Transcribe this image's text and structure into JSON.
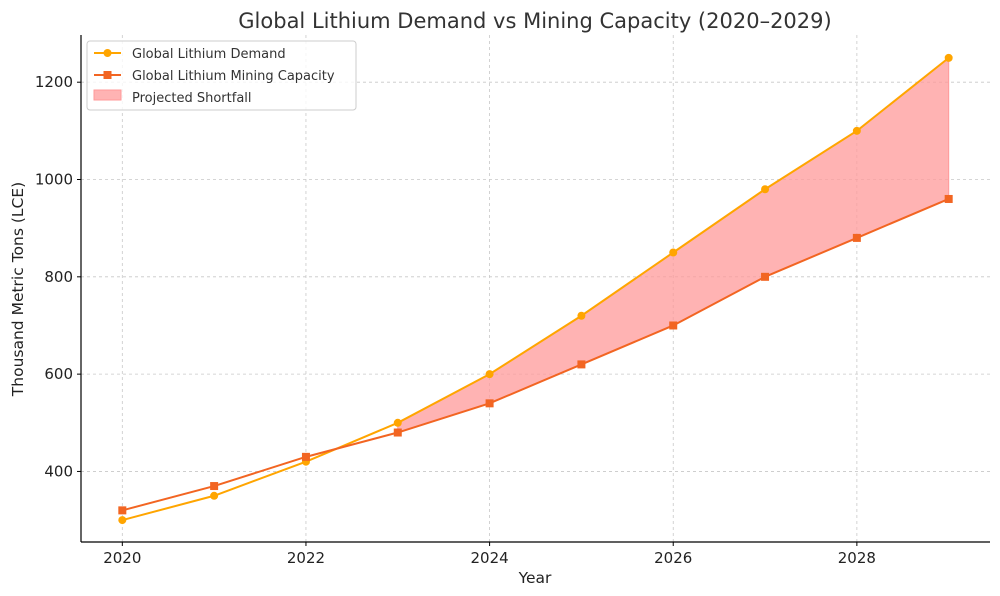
{
  "chart_data": {
    "type": "line",
    "title": "Global Lithium Demand vs Mining Capacity (2020–2029)",
    "xlabel": "Year",
    "ylabel": "Thousand Metric Tons (LCE)",
    "x": [
      2020,
      2021,
      2022,
      2023,
      2024,
      2025,
      2026,
      2027,
      2028,
      2029
    ],
    "xlim": [
      2019.55,
      2029.45
    ],
    "ylim": [
      255,
      1297
    ],
    "xticks": [
      2020,
      2022,
      2024,
      2026,
      2028
    ],
    "yticks": [
      400,
      600,
      800,
      1000,
      1200
    ],
    "grid": true,
    "legend_position": "top-left",
    "series": [
      {
        "name": "Global Lithium Demand",
        "marker": "circle",
        "color": "#FFA500",
        "values": [
          300,
          350,
          420,
          500,
          600,
          720,
          850,
          980,
          1100,
          1250
        ]
      },
      {
        "name": "Global Lithium Mining Capacity",
        "marker": "square",
        "color": "#F26522",
        "values": [
          320,
          370,
          430,
          480,
          540,
          620,
          700,
          800,
          880,
          960
        ]
      }
    ],
    "fill": {
      "name": "Projected Shortfall",
      "color": "#FF9999",
      "from_x": 2023,
      "to_x": 2029,
      "between": [
        "Global Lithium Mining Capacity",
        "Global Lithium Demand"
      ]
    }
  }
}
